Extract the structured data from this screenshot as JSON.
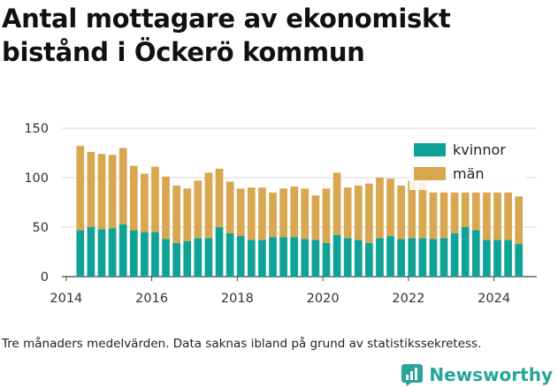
{
  "title": "Antal mottagare av ekonomiskt bistånd i Öckerö kommun",
  "caption": "Tre månaders medelvärden. Data saknas ibland på grund av statistikssekretess.",
  "brand": "Newsworthy",
  "chart_data": {
    "type": "bar",
    "stacked": true,
    "x": [
      2014.33,
      2014.58,
      2014.83,
      2015.08,
      2015.33,
      2015.58,
      2015.83,
      2016.08,
      2016.33,
      2016.58,
      2016.83,
      2017.08,
      2017.33,
      2017.58,
      2017.83,
      2018.08,
      2018.33,
      2018.58,
      2018.83,
      2019.08,
      2019.33,
      2019.58,
      2019.83,
      2020.08,
      2020.33,
      2020.58,
      2020.83,
      2021.08,
      2021.33,
      2021.58,
      2021.83,
      2022.08,
      2022.33,
      2022.58,
      2022.83,
      2023.08,
      2023.33,
      2023.58,
      2023.83,
      2024.08,
      2024.33,
      2024.58
    ],
    "series": [
      {
        "name": "kvinnor",
        "color": "#0fa397",
        "values": [
          47,
          50,
          48,
          49,
          53,
          47,
          45,
          45,
          38,
          34,
          36,
          39,
          39,
          50,
          44,
          41,
          37,
          37,
          40,
          40,
          40,
          38,
          37,
          34,
          42,
          39,
          37,
          34,
          39,
          41,
          38,
          39,
          39,
          38,
          39,
          44,
          50,
          47,
          37,
          37,
          37,
          33
        ]
      },
      {
        "name": "män",
        "color": "#d8a750",
        "values": [
          85,
          76,
          76,
          74,
          77,
          65,
          59,
          66,
          63,
          58,
          53,
          58,
          66,
          59,
          52,
          48,
          53,
          53,
          45,
          49,
          51,
          51,
          45,
          55,
          63,
          51,
          55,
          60,
          61,
          58,
          54,
          58,
          56,
          47,
          46,
          41,
          35,
          38,
          48,
          48,
          48,
          48
        ]
      }
    ],
    "title": "",
    "xlabel": "",
    "ylabel": "",
    "xlim": [
      2013.9,
      2025.0
    ],
    "ylim": [
      0,
      150
    ],
    "xticks": [
      2014,
      2016,
      2018,
      2020,
      2022,
      2024
    ],
    "yticks": [
      0,
      50,
      100,
      150
    ],
    "grid": "horizontal",
    "legend": "top-right"
  }
}
